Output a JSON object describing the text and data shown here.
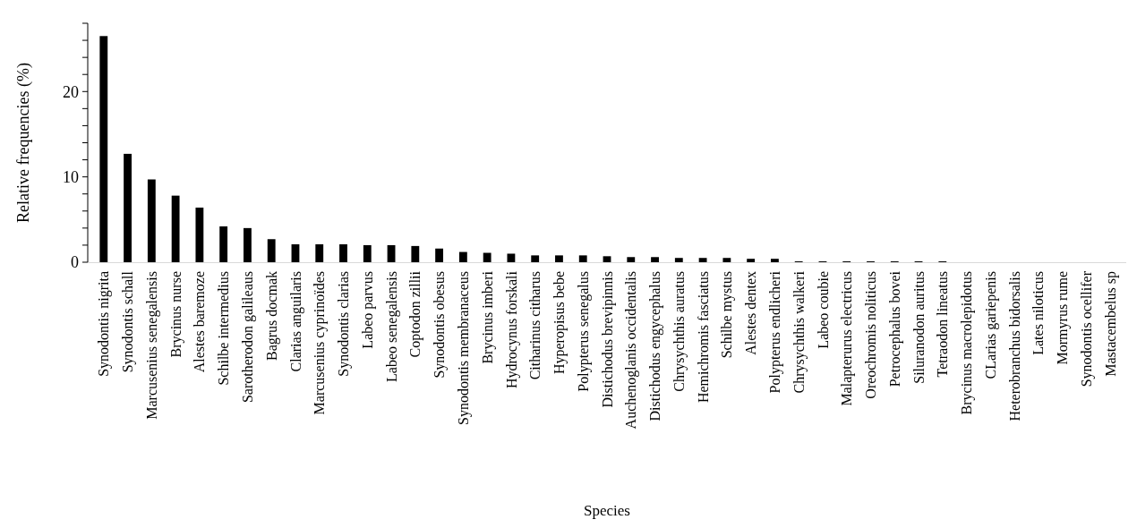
{
  "chart_data": {
    "type": "bar",
    "xlabel": "Species",
    "ylabel": "Relative frequencies (%)",
    "categories": [
      "Synodontis nigrita",
      "Synodontis schall",
      "Marcusenius senegalensis",
      "Brycinus nurse",
      "Alestes baremoze",
      "Schilbe intermedius",
      "Sarotherodon galileaus",
      "Bagrus docmak",
      "Clarias anguilaris",
      "Marcusenius cyprinoïdes",
      "Synodontis clarias",
      "Labeo parvus",
      "Labeo senegalensis",
      "Coptodon zillii",
      "Synodontis obesus",
      "Synodontis membranaceus",
      "Brycinus imberi",
      "Hydrocynus forskali",
      "Citharinus citharus",
      "Hyperopisus bebe",
      "Polypterus senegalus",
      "Distichodus brevipinnis",
      "Auchenoglanis occidentalis",
      "Distichodus engycephalus",
      "Chrysychthis auratus",
      "Hemichromis fasciatus",
      "Schilbe mystus",
      "Alestes dentex",
      "Polypterus endlicheri",
      "Chrysychthis walkeri",
      "Labeo coubie",
      "Malapterurus electricus",
      "Oreochromis noliticus",
      "Petrocephalus bovei",
      "Siluranodon auritus",
      "Tetraodon lineatus",
      "Brycinus macrolepidotus",
      "CLarias gariepenis",
      "Heterobranchus bidorsalis",
      "Lates niloticus",
      "Mormyrus rume",
      "Synodontis ocellifer",
      "Mastacembelus sp"
    ],
    "values": [
      26.5,
      12.7,
      9.7,
      7.8,
      6.4,
      4.2,
      4.0,
      2.7,
      2.1,
      2.1,
      2.1,
      2.0,
      2.0,
      1.9,
      1.6,
      1.2,
      1.1,
      1.0,
      0.8,
      0.8,
      0.8,
      0.7,
      0.6,
      0.6,
      0.5,
      0.5,
      0.5,
      0.4,
      0.4,
      0.1,
      0.1,
      0.1,
      0.1,
      0.1,
      0.1,
      0.1,
      0,
      0,
      0,
      0,
      0,
      0,
      0
    ],
    "color": "#000000",
    "ylim": [
      0,
      28
    ],
    "yticks": [
      0,
      {
        "value": 2,
        "label": null
      },
      {
        "value": 4,
        "label": null
      },
      {
        "value": 6,
        "label": null
      },
      {
        "value": 8,
        "label": null
      },
      10,
      {
        "value": 12,
        "label": null
      },
      {
        "value": 14,
        "label": null
      },
      {
        "value": 16,
        "label": null
      },
      {
        "value": 18,
        "label": null
      },
      20,
      {
        "value": 22,
        "label": null
      },
      {
        "value": 24,
        "label": null
      },
      {
        "value": 26,
        "label": null
      },
      {
        "value": 28,
        "label": null
      }
    ],
    "grid": false
  }
}
